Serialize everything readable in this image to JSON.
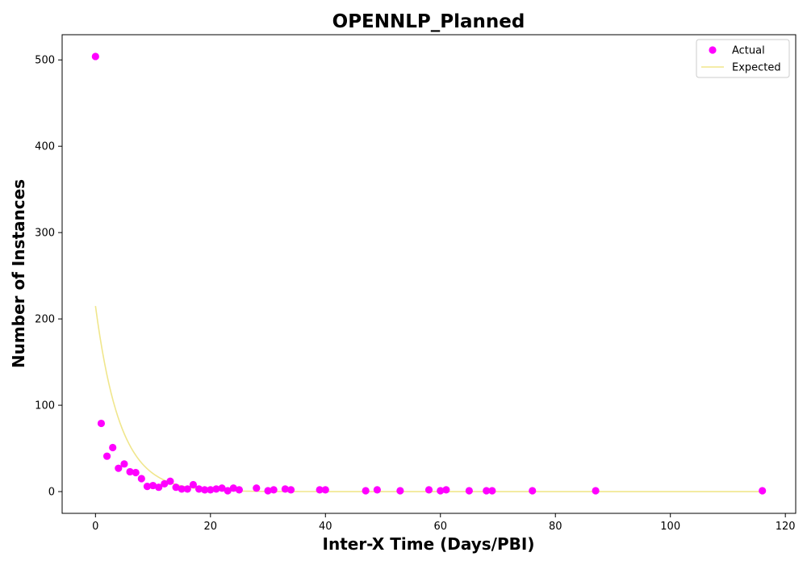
{
  "chart_data": {
    "type": "scatter",
    "title": "OPENNLP_Planned",
    "xlabel": "Inter-X Time (Days/PBI)",
    "ylabel": "Number of Instances",
    "xlim": [
      -5.8,
      121.8
    ],
    "ylim": [
      -25.2,
      529.2
    ],
    "xticks": [
      0,
      20,
      40,
      60,
      80,
      100,
      120
    ],
    "yticks": [
      0,
      100,
      200,
      300,
      400,
      500
    ],
    "grid": false,
    "legend_position": "upper right",
    "series": [
      {
        "name": "Actual",
        "kind": "scatter",
        "color": "#ff00ff",
        "x": [
          0,
          1,
          2,
          3,
          4,
          5,
          6,
          7,
          8,
          9,
          10,
          11,
          12,
          13,
          14,
          15,
          16,
          17,
          18,
          19,
          20,
          21,
          22,
          23,
          24,
          25,
          28,
          30,
          31,
          33,
          34,
          39,
          40,
          47,
          49,
          53,
          58,
          60,
          61,
          65,
          68,
          69,
          76,
          87,
          116
        ],
        "y": [
          504,
          79,
          41,
          51,
          27,
          32,
          23,
          22,
          15,
          6,
          7,
          5,
          9,
          12,
          5,
          3,
          3,
          8,
          3,
          2,
          2,
          3,
          4,
          1,
          4,
          2,
          4,
          1,
          2,
          3,
          2,
          2,
          2,
          1,
          2,
          1,
          2,
          1,
          2,
          1,
          1,
          1,
          1,
          1,
          1
        ]
      },
      {
        "name": "Expected",
        "kind": "line",
        "color": "#f0e68c",
        "amplitude": 215,
        "rate": 0.233,
        "x_range": [
          0,
          116
        ]
      }
    ]
  }
}
